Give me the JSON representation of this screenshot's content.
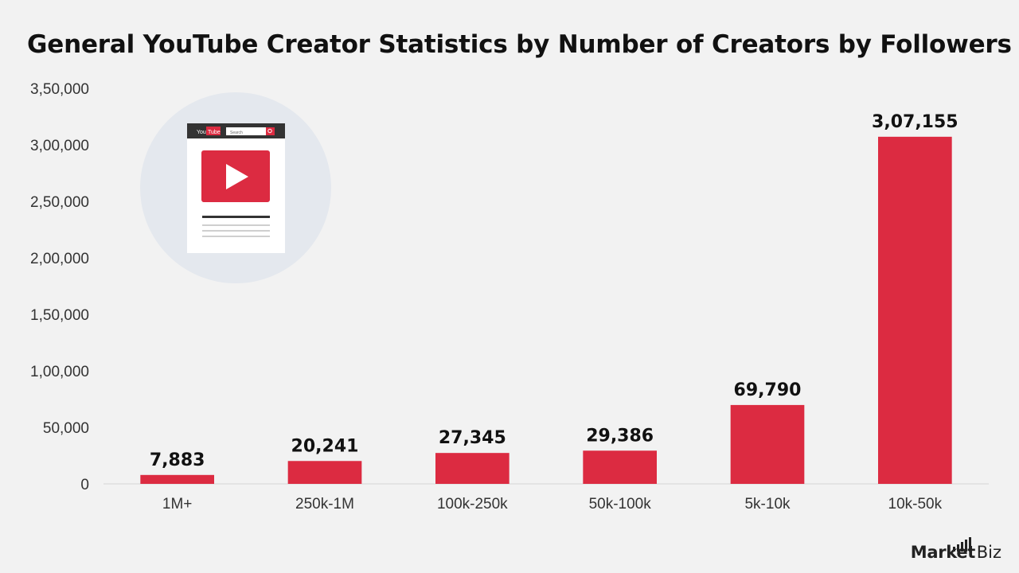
{
  "header": {
    "title": "General YouTube Creator Statistics by Number of Creators by Followers"
  },
  "illustration": {
    "logo_you": "You",
    "logo_tube": "Tube",
    "search_placeholder": "Search",
    "icon": "youtube-page-icon"
  },
  "brand": {
    "name_bold": "Market",
    "name_rest": ".Biz"
  },
  "colors": {
    "bar": "#dc2b41",
    "background": "#f2f2f2",
    "illustration_circle": "#e4e8ee"
  },
  "chart_data": {
    "type": "bar",
    "title": "General YouTube Creator Statistics by Number of Creators by Followers",
    "categories": [
      "1M+",
      "250k-1M",
      "100k-250k",
      "50k-100k",
      "5k-10k",
      "10k-50k"
    ],
    "values": [
      7883,
      20241,
      27345,
      29386,
      69790,
      307155
    ],
    "value_labels": [
      "7,883",
      "20,241",
      "27,345",
      "29,386",
      "69,790",
      "3,07,155"
    ],
    "ylim": [
      0,
      350000
    ],
    "yticks": [
      0,
      50000,
      100000,
      150000,
      200000,
      250000,
      300000,
      350000
    ],
    "ytick_labels": [
      "0",
      "50,000",
      "1,00,000",
      "1,50,000",
      "2,00,000",
      "2,50,000",
      "3,00,000",
      "3,50,000"
    ],
    "grid": false,
    "legend": "none"
  }
}
